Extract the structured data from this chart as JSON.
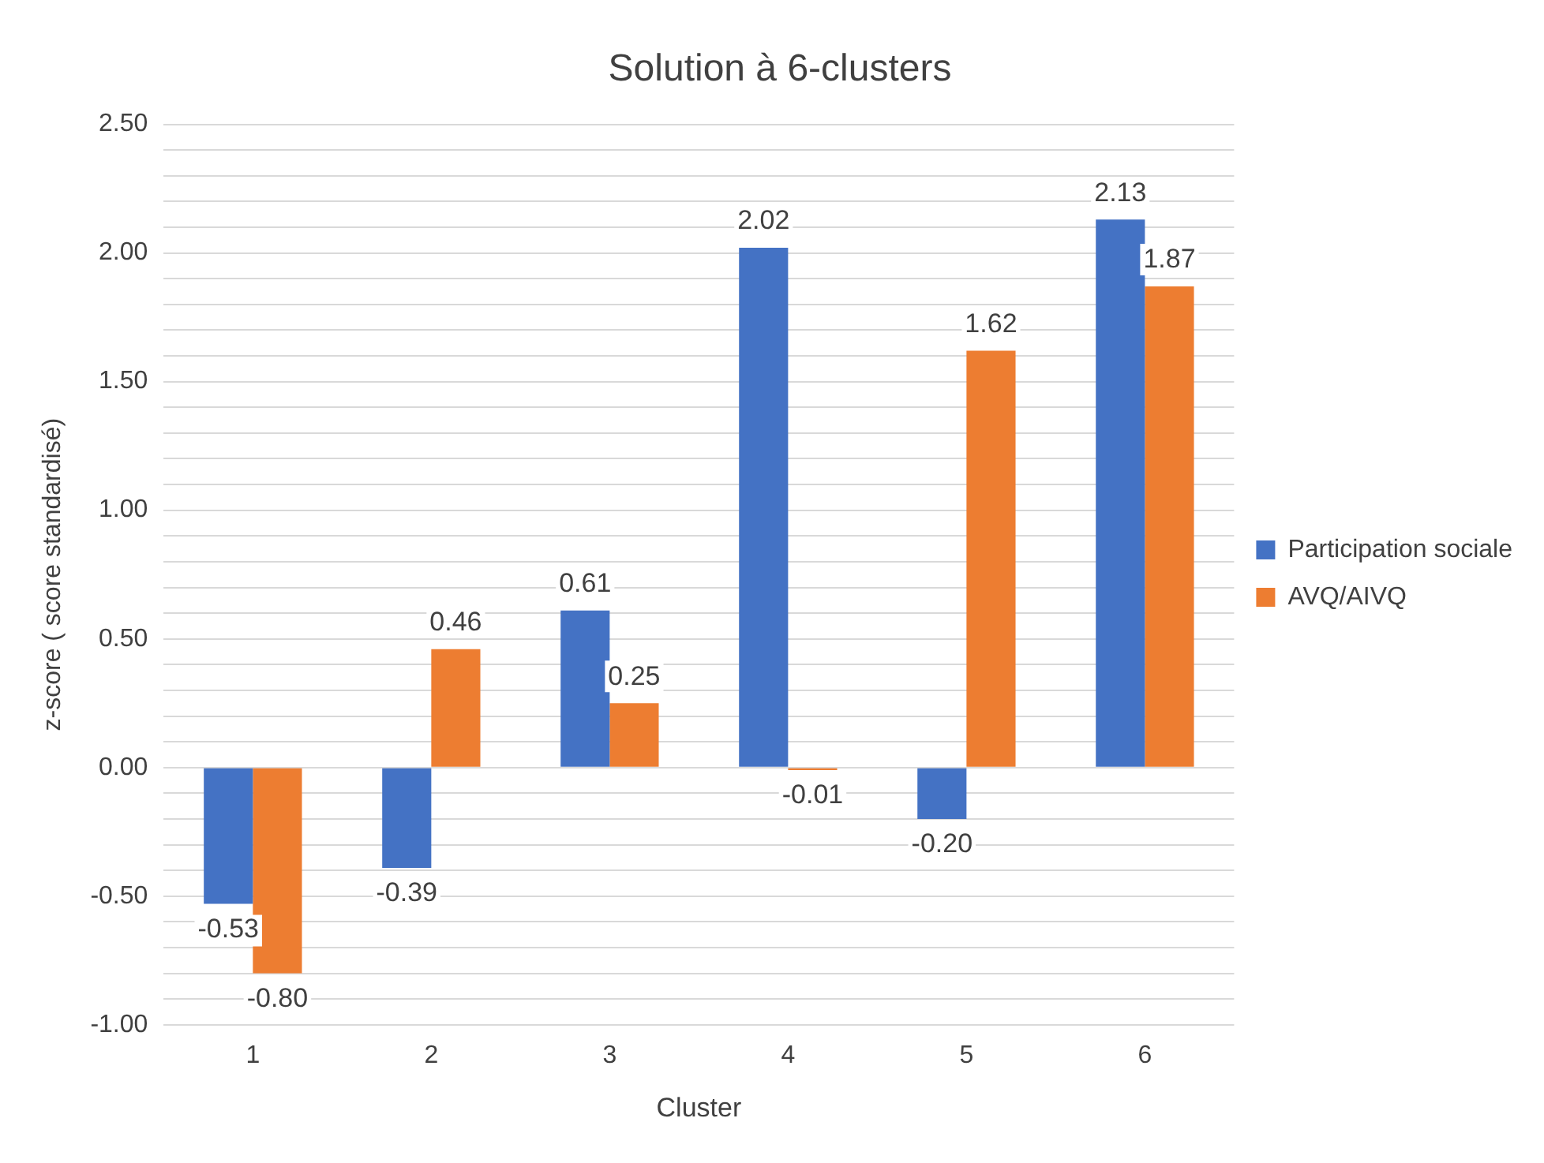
{
  "chart_data": {
    "type": "bar",
    "title": "Solution à 6-clusters",
    "xlabel": "Cluster",
    "ylabel": "z-score ( score standardisé)",
    "categories": [
      "1",
      "2",
      "3",
      "4",
      "5",
      "6"
    ],
    "series": [
      {
        "name": "Participation sociale",
        "color": "#4472c4",
        "values": [
          -0.53,
          -0.39,
          0.61,
          2.02,
          -0.2,
          2.13
        ],
        "value_labels": [
          "-0.53",
          "-0.39",
          "0.61",
          "2.02",
          "-0.20",
          "2.13"
        ]
      },
      {
        "name": "AVQ/AIVQ",
        "color": "#ed7d31",
        "values": [
          -0.8,
          0.46,
          0.25,
          -0.01,
          1.62,
          1.87
        ],
        "value_labels": [
          "-0.80",
          "0.46",
          "0.25",
          "-0.01",
          "1.62",
          "1.87"
        ]
      }
    ],
    "ylim": [
      -1,
      2.5
    ],
    "yticks": [
      {
        "value": -1,
        "label": "-1.00"
      },
      {
        "value": -0.9,
        "label": null
      },
      {
        "value": -0.8,
        "label": null
      },
      {
        "value": -0.7,
        "label": null
      },
      {
        "value": -0.6,
        "label": null
      },
      {
        "value": -0.5,
        "label": "-0.50"
      },
      {
        "value": -0.4,
        "label": null
      },
      {
        "value": -0.3,
        "label": null
      },
      {
        "value": -0.2,
        "label": null
      },
      {
        "value": -0.1,
        "label": null
      },
      {
        "value": 0,
        "label": "0.00"
      },
      {
        "value": 0.1,
        "label": null
      },
      {
        "value": 0.2,
        "label": null
      },
      {
        "value": 0.3,
        "label": null
      },
      {
        "value": 0.4,
        "label": null
      },
      {
        "value": 0.5,
        "label": "0.50"
      },
      {
        "value": 0.6,
        "label": null
      },
      {
        "value": 0.7,
        "label": null
      },
      {
        "value": 0.8,
        "label": null
      },
      {
        "value": 0.9,
        "label": null
      },
      {
        "value": 1,
        "label": "1.00"
      },
      {
        "value": 1.1,
        "label": null
      },
      {
        "value": 1.2,
        "label": null
      },
      {
        "value": 1.3,
        "label": null
      },
      {
        "value": 1.4,
        "label": null
      },
      {
        "value": 1.5,
        "label": "1.50"
      },
      {
        "value": 1.6,
        "label": null
      },
      {
        "value": 1.7,
        "label": null
      },
      {
        "value": 1.8,
        "label": null
      },
      {
        "value": 1.9,
        "label": null
      },
      {
        "value": 2,
        "label": "2.00"
      },
      {
        "value": 2.1,
        "label": null
      },
      {
        "value": 2.2,
        "label": null
      },
      {
        "value": 2.3,
        "label": null
      },
      {
        "value": 2.4,
        "label": null
      },
      {
        "value": 2.5,
        "label": "2.50"
      }
    ],
    "grid": "y",
    "legend": "right"
  }
}
